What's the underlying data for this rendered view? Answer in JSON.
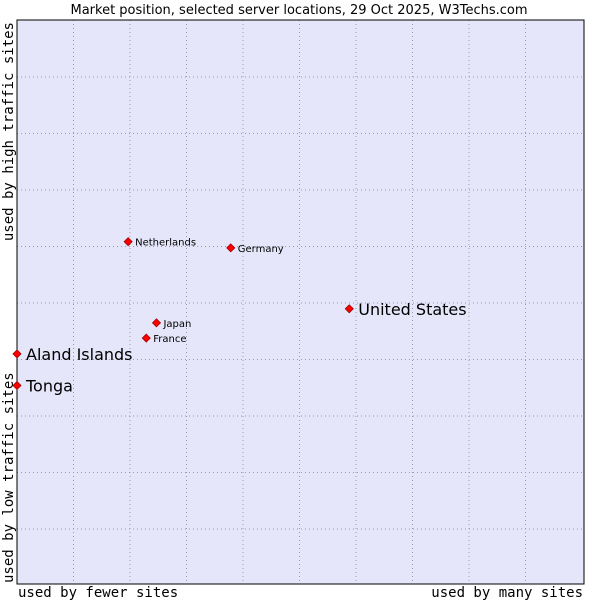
{
  "chart_data": {
    "type": "scatter",
    "title": "Market position, selected server locations, 29 Oct 2025, W3Techs.com",
    "xlabel_left": "used by fewer sites",
    "xlabel_right": "used by many sites",
    "ylabel_bottom": "used by low traffic sites",
    "ylabel_top": "used by high traffic sites",
    "xlim": [
      0,
      100
    ],
    "ylim": [
      0,
      100
    ],
    "grid": true,
    "colors": {
      "plot_background": "#e6e6fa",
      "grid": "#9999aa",
      "point": "#ff0000",
      "point_outline": "#990000"
    },
    "points": [
      {
        "label": "Netherlands",
        "x": 19.6,
        "y": 60.7,
        "emphasis": "small"
      },
      {
        "label": "Germany",
        "x": 37.7,
        "y": 59.6,
        "emphasis": "small"
      },
      {
        "label": "United States",
        "x": 58.6,
        "y": 48.8,
        "emphasis": "large"
      },
      {
        "label": "Japan",
        "x": 24.6,
        "y": 46.3,
        "emphasis": "small"
      },
      {
        "label": "France",
        "x": 22.8,
        "y": 43.6,
        "emphasis": "small"
      },
      {
        "label": "Aland Islands",
        "x": 0.0,
        "y": 40.8,
        "emphasis": "large"
      },
      {
        "label": "Tonga",
        "x": 0.0,
        "y": 35.2,
        "emphasis": "large"
      }
    ]
  }
}
